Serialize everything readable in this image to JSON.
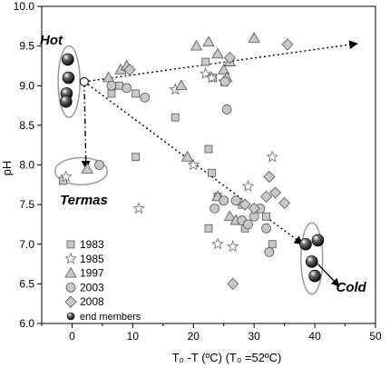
{
  "chart_data": {
    "type": "scatter",
    "xlabel": "T₀ -T (ºC) (T₀ =52ºC)",
    "ylabel": "pH",
    "xlim": [
      -5,
      50
    ],
    "ylim": [
      6.0,
      10.0
    ],
    "x_ticks": [
      0,
      10,
      20,
      30,
      40,
      50
    ],
    "y_ticks": [
      6.0,
      6.5,
      7.0,
      7.5,
      8.0,
      8.5,
      9.0,
      9.5,
      10.0
    ],
    "x_tick_labels": [
      "0",
      "10",
      "20",
      "30",
      "40",
      "50"
    ],
    "y_tick_labels": [
      "6.0",
      "6.5",
      "7.0",
      "7.5",
      "8.0",
      "8.5",
      "9.0",
      "9.5",
      "10.0"
    ],
    "grid": false,
    "legend_position": "bottom-left",
    "series": [
      {
        "name": "1983",
        "marker": "square",
        "color": "#c8c8c8",
        "points": [
          [
            -1.5,
            7.8
          ],
          [
            6.5,
            8.9
          ],
          [
            7.8,
            9.0
          ],
          [
            10.5,
            8.9
          ],
          [
            17,
            8.6
          ],
          [
            10.5,
            8.1
          ],
          [
            22.5,
            8.2
          ],
          [
            23,
            7.9
          ],
          [
            22.5,
            7.2
          ],
          [
            24,
            7.6
          ],
          [
            22,
            9.3
          ],
          [
            23.2,
            9.1
          ],
          [
            28,
            7.5
          ],
          [
            28.5,
            7.2
          ],
          [
            32,
            7.35
          ],
          [
            33,
            7.0
          ]
        ]
      },
      {
        "name": "1985",
        "marker": "star",
        "color": "#a0a0a0",
        "points": [
          [
            -1,
            7.85
          ],
          [
            11,
            7.45
          ],
          [
            17,
            8.95
          ],
          [
            20,
            8.0
          ],
          [
            24,
            7.0
          ],
          [
            26.5,
            6.97
          ],
          [
            29,
            7.73
          ],
          [
            33,
            8.1
          ],
          [
            22,
            9.15
          ],
          [
            23,
            9.1
          ],
          [
            25,
            9.05
          ]
        ]
      },
      {
        "name": "1997",
        "marker": "triangle",
        "color": "#c8c8c8",
        "points": [
          [
            2.5,
            7.95
          ],
          [
            6,
            9.1
          ],
          [
            8,
            9.2
          ],
          [
            9,
            9.25
          ],
          [
            18,
            9.0
          ],
          [
            19,
            8.1
          ],
          [
            20.5,
            9.5
          ],
          [
            22.5,
            9.55
          ],
          [
            24,
            9.4
          ],
          [
            25,
            9.2
          ],
          [
            25.5,
            9.1
          ],
          [
            26,
            9.3
          ],
          [
            30,
            9.6
          ],
          [
            24,
            7.6
          ],
          [
            26,
            7.35
          ],
          [
            27,
            7.3
          ]
        ]
      },
      {
        "name": "2003",
        "marker": "circle",
        "color": "#c8c8c8",
        "points": [
          [
            4.5,
            8.0
          ],
          [
            6.5,
            9.0
          ],
          [
            9,
            8.97
          ],
          [
            12,
            8.85
          ],
          [
            23.5,
            7.45
          ],
          [
            25,
            7.55
          ],
          [
            25.5,
            8.7
          ],
          [
            25.2,
            9.05
          ],
          [
            27,
            7.55
          ],
          [
            28,
            7.3
          ],
          [
            29,
            7.25
          ],
          [
            30,
            7.35
          ],
          [
            31,
            7.45
          ],
          [
            32,
            7.2
          ],
          [
            32.5,
            6.9
          ]
        ]
      },
      {
        "name": "2008",
        "marker": "diamond",
        "color": "#c8c8c8",
        "points": [
          [
            9.5,
            9.2
          ],
          [
            26,
            9.35
          ],
          [
            35.5,
            9.52
          ],
          [
            28.5,
            7.5
          ],
          [
            30,
            7.45
          ],
          [
            32,
            7.6
          ],
          [
            32.5,
            7.85
          ],
          [
            33.5,
            7.65
          ],
          [
            35,
            7.52
          ],
          [
            26.5,
            6.5
          ]
        ]
      },
      {
        "name": "end members",
        "marker": "sphere",
        "color": "#000000",
        "points": [
          [
            -0.7,
            9.33
          ],
          [
            -0.6,
            9.1
          ],
          [
            -0.9,
            8.9
          ],
          [
            -1.0,
            8.8
          ],
          [
            38.5,
            7.0
          ],
          [
            40.5,
            7.05
          ],
          [
            39.5,
            6.78
          ],
          [
            40.0,
            6.6
          ]
        ]
      }
    ],
    "arrows": [
      {
        "from": [
          2.0,
          9.05
        ],
        "to": [
          47.0,
          9.53
        ],
        "style": "dotted"
      },
      {
        "from": [
          2.0,
          9.05
        ],
        "to": [
          38.0,
          7.0
        ],
        "style": "dotted"
      },
      {
        "from": [
          2.0,
          9.05
        ],
        "to": [
          2.3,
          7.95
        ],
        "style": "dash-dot"
      },
      {
        "from": [
          40.5,
          6.75
        ],
        "to": [
          44.0,
          6.47
        ],
        "style": "solid"
      }
    ],
    "focus_point": [
      2.0,
      9.05
    ],
    "annotations": [
      {
        "text": "Hot",
        "x": -5.3,
        "y": 9.52
      },
      {
        "text": "Termas",
        "x": -2.0,
        "y": 7.5
      },
      {
        "text": "Cold",
        "x": 43.5,
        "y": 6.4
      }
    ],
    "ellipses": [
      {
        "label": "Hot",
        "cx": -0.5,
        "cy": 9.05,
        "rx": 1.8,
        "ry": 0.45
      },
      {
        "label": "Termas",
        "cx": 1.5,
        "cy": 7.92,
        "rx": 4.3,
        "ry": 0.17
      },
      {
        "label": "Cold",
        "cx": 39.5,
        "cy": 6.82,
        "rx": 1.8,
        "ry": 0.45
      }
    ]
  }
}
